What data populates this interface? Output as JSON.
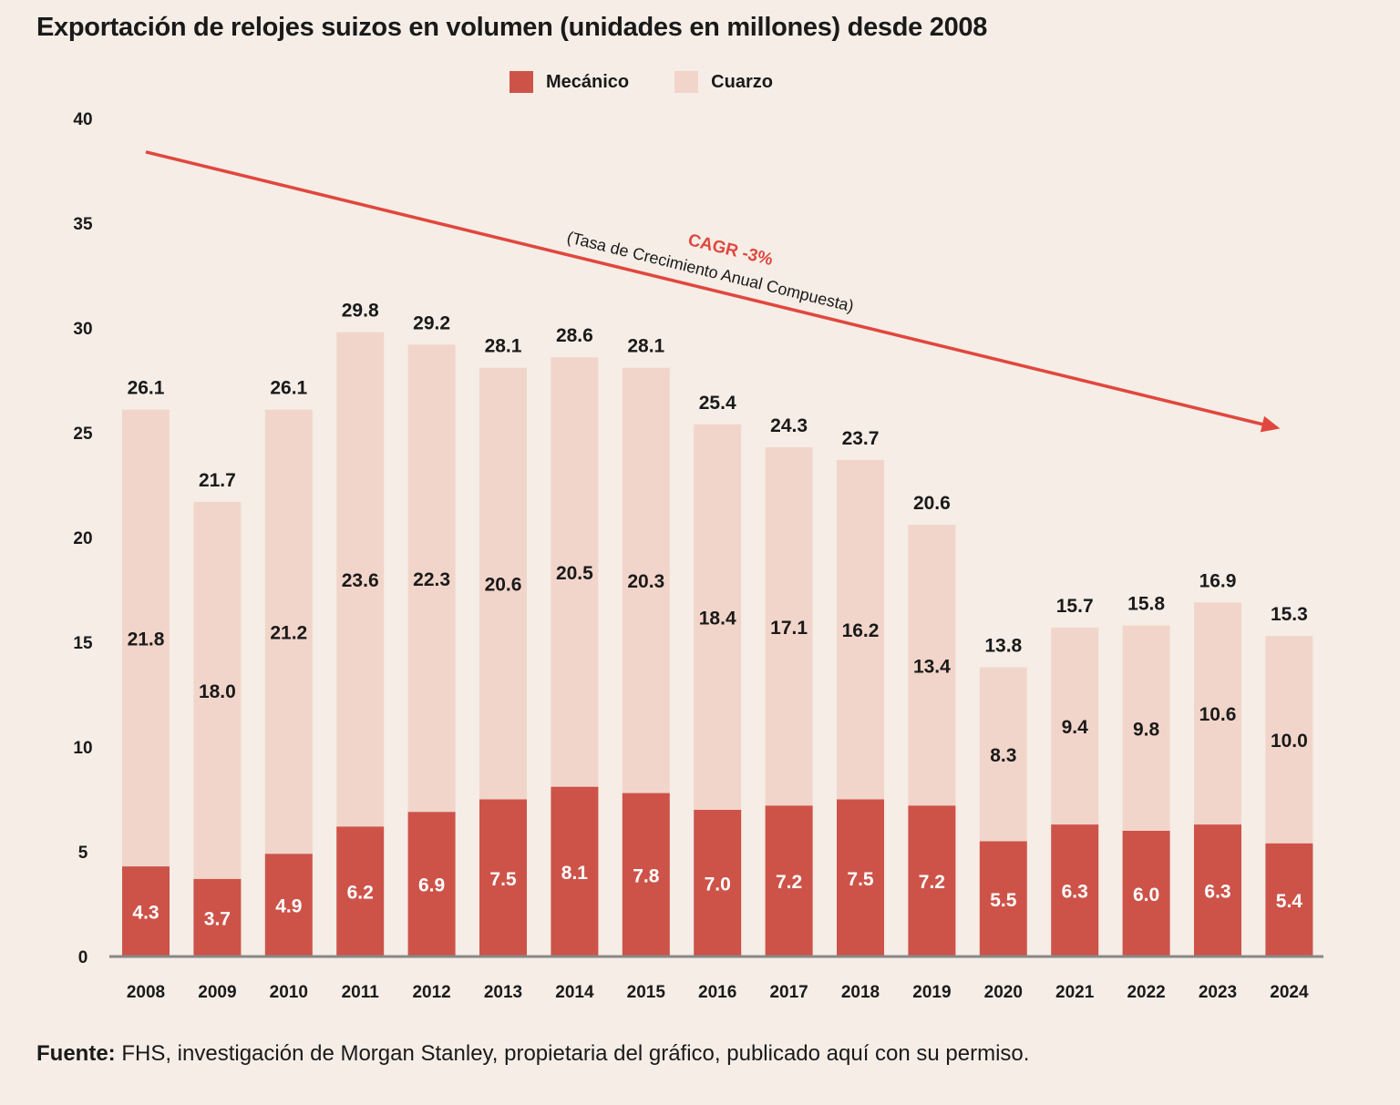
{
  "colors": {
    "background": "#f5ede6",
    "mecanico": "#cd5349",
    "cuarzo": "#f2d5ca",
    "arrow": "#e0473e",
    "axis": "#888888"
  },
  "chart_data": {
    "type": "bar",
    "stacked": true,
    "title": "Exportación de relojes suizos en volumen (unidades en millones) desde 2008",
    "categories": [
      "2008",
      "2009",
      "2010",
      "2011",
      "2012",
      "2013",
      "2014",
      "2015",
      "2016",
      "2017",
      "2018",
      "2019",
      "2020",
      "2021",
      "2022",
      "2023",
      "2024"
    ],
    "series": [
      {
        "name": "Mecánico",
        "values": [
          "4.3",
          "3.7",
          "4.9",
          "6.2",
          "6.9",
          "7.5",
          "8.1",
          "7.8",
          "7.0",
          "7.2",
          "7.5",
          "7.2",
          "5.5",
          "6.3",
          "6.0",
          "6.3",
          "5.4"
        ]
      },
      {
        "name": "Cuarzo",
        "values": [
          "21.8",
          "18.0",
          "21.2",
          "23.6",
          "22.3",
          "20.6",
          "20.5",
          "20.3",
          "18.4",
          "17.1",
          "16.2",
          "13.4",
          "8.3",
          "9.4",
          "9.8",
          "10.6",
          "10.0"
        ]
      }
    ],
    "totals": [
      "26.1",
      "21.7",
      "26.1",
      "29.8",
      "29.2",
      "28.1",
      "28.6",
      "28.1",
      "25.4",
      "24.3",
      "23.7",
      "20.6",
      "13.8",
      "15.7",
      "15.8",
      "16.9",
      "15.3"
    ],
    "yticks": [
      "0",
      "5",
      "10",
      "15",
      "20",
      "25",
      "30",
      "35",
      "40"
    ],
    "ylim": [
      0,
      40
    ],
    "legend_position": "top-center",
    "annotation": {
      "label": "CAGR -3%",
      "sublabel": "(Tasa de Crecimiento Anual Compuesta)",
      "arrow_from": {
        "x": "2008",
        "y": 38.4
      },
      "arrow_to": {
        "x": "2024",
        "y": 25.2
      }
    }
  },
  "footer": {
    "label": "Fuente:",
    "text": " FHS, investigación de Morgan Stanley, propietaria del gráfico, publicado aquí con su permiso."
  }
}
